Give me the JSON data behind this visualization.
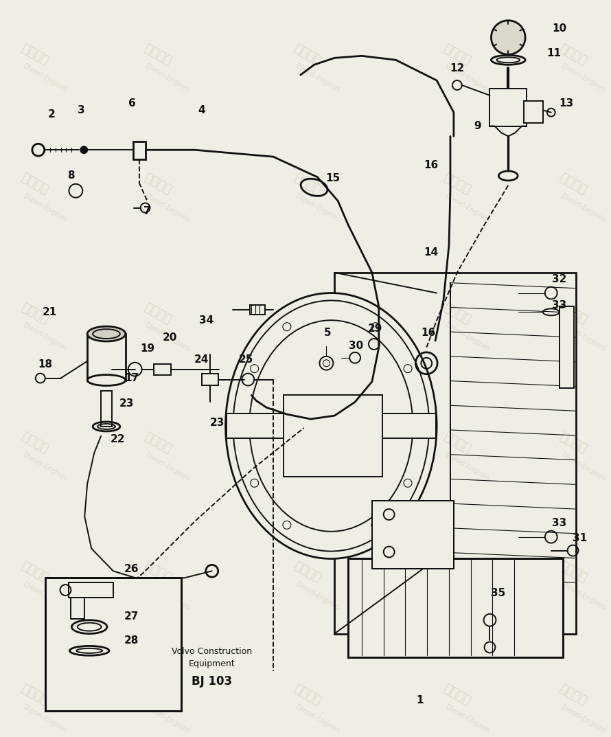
{
  "bg_color": "#f0ede4",
  "line_color": "#111111",
  "wm_color": "#c8c0ac",
  "footer_line1": "Volvo Construction",
  "footer_line2": "Equipment",
  "footer_code": "BJ 103",
  "lw": 1.4,
  "lw2": 2.0,
  "lw_thin": 0.8
}
